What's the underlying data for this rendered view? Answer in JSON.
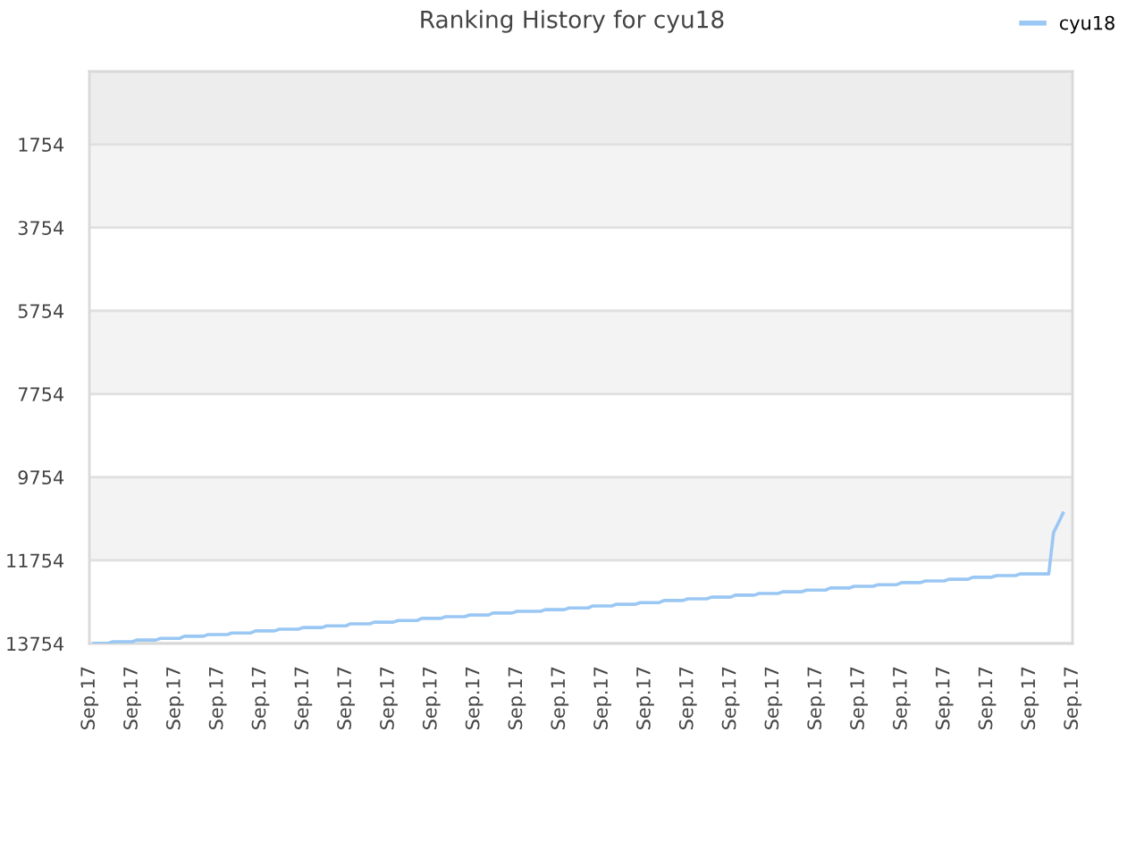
{
  "chart_data": {
    "type": "line",
    "title": "Ranking History for cyu18",
    "categories": [
      "Sep.17",
      null,
      null,
      null,
      null,
      null,
      null,
      null,
      null,
      "Sep.17",
      null,
      null,
      null,
      null,
      null,
      null,
      null,
      null,
      "Sep.17",
      null,
      null,
      null,
      null,
      null,
      null,
      null,
      null,
      "Sep.17",
      null,
      null,
      null,
      null,
      null,
      null,
      null,
      null,
      "Sep.17",
      null,
      null,
      null,
      null,
      null,
      null,
      null,
      null,
      "Sep.17",
      null,
      null,
      null,
      null,
      null,
      null,
      null,
      null,
      "Sep.17",
      null,
      null,
      null,
      null,
      null,
      null,
      null,
      null,
      "Sep.17",
      null,
      null,
      null,
      null,
      null,
      null,
      null,
      null,
      "Sep.17",
      null,
      null,
      null,
      null,
      null,
      null,
      null,
      null,
      "Sep.17",
      null,
      null,
      null,
      null,
      null,
      null,
      null,
      null,
      "Sep.17",
      null,
      null,
      null,
      null,
      null,
      null,
      null,
      null,
      "Sep.17",
      null,
      null,
      null,
      null,
      null,
      null,
      null,
      null,
      "Sep.17",
      null,
      null,
      null,
      null,
      null,
      null,
      null,
      null,
      "Sep.17",
      null,
      null,
      null,
      null,
      null,
      null,
      null,
      null,
      "Sep.17",
      null,
      null,
      null,
      null,
      null,
      null,
      null,
      null,
      "Sep.17",
      null,
      null,
      null,
      null,
      null,
      null,
      null,
      null,
      "Sep.17",
      null,
      null,
      null,
      null,
      null,
      null,
      null,
      null,
      "Sep.17",
      null,
      null,
      null,
      null,
      null,
      null,
      null,
      null,
      "Sep.17",
      null,
      null,
      null,
      null,
      null,
      null,
      null,
      null,
      "Sep.17",
      null,
      null,
      null,
      null,
      null,
      null,
      null,
      null,
      "Sep.17",
      null,
      null,
      null,
      null,
      null,
      null,
      null,
      null,
      "Sep.17",
      null,
      null,
      null,
      null,
      null,
      null,
      null,
      null,
      "Sep.17",
      null,
      null,
      null,
      null,
      null,
      null,
      null,
      null,
      "Sep.17"
    ],
    "series": [
      {
        "name": "cyu18",
        "color": "#9ac7f3",
        "values": [
          null,
          13750,
          13750,
          13750,
          13750,
          13710,
          13710,
          13710,
          13710,
          13710,
          13670,
          13670,
          13670,
          13670,
          13670,
          13630,
          13630,
          13630,
          13630,
          13630,
          13580,
          13580,
          13580,
          13580,
          13580,
          13540,
          13540,
          13540,
          13540,
          13540,
          13500,
          13500,
          13500,
          13500,
          13500,
          13450,
          13450,
          13450,
          13450,
          13450,
          13410,
          13410,
          13410,
          13410,
          13410,
          13370,
          13370,
          13370,
          13370,
          13370,
          13330,
          13330,
          13330,
          13330,
          13330,
          13280,
          13280,
          13280,
          13280,
          13280,
          13240,
          13240,
          13240,
          13240,
          13240,
          13200,
          13200,
          13200,
          13200,
          13200,
          13150,
          13150,
          13150,
          13150,
          13150,
          13110,
          13110,
          13110,
          13110,
          13110,
          13070,
          13070,
          13070,
          13070,
          13070,
          13020,
          13020,
          13020,
          13020,
          13020,
          12980,
          12980,
          12980,
          12980,
          12980,
          12980,
          12940,
          12940,
          12940,
          12940,
          12940,
          12900,
          12900,
          12900,
          12900,
          12900,
          12850,
          12850,
          12850,
          12850,
          12850,
          12810,
          12810,
          12810,
          12810,
          12810,
          12770,
          12770,
          12770,
          12770,
          12770,
          12720,
          12720,
          12720,
          12720,
          12720,
          12680,
          12680,
          12680,
          12680,
          12680,
          12640,
          12640,
          12640,
          12640,
          12640,
          12590,
          12590,
          12590,
          12590,
          12590,
          12550,
          12550,
          12550,
          12550,
          12550,
          12510,
          12510,
          12510,
          12510,
          12510,
          12470,
          12470,
          12470,
          12470,
          12470,
          12420,
          12420,
          12420,
          12420,
          12420,
          12380,
          12380,
          12380,
          12380,
          12380,
          12340,
          12340,
          12340,
          12340,
          12340,
          12290,
          12290,
          12290,
          12290,
          12290,
          12250,
          12250,
          12250,
          12250,
          12250,
          12210,
          12210,
          12210,
          12210,
          12210,
          12160,
          12160,
          12160,
          12160,
          12160,
          12120,
          12120,
          12120,
          12120,
          12120,
          12080,
          12080,
          12080,
          12080,
          12080,
          12080,
          12080,
          11090,
          10860,
          10620,
          null,
          null
        ]
      }
    ],
    "ylim": [
      13754,
      0
    ],
    "yticks": [
      1754,
      3754,
      5754,
      7754,
      9754,
      11754,
      13754
    ],
    "bands": [
      {
        "axis": "y",
        "from": 0,
        "to": 1754,
        "color": "#ededed"
      },
      {
        "axis": "y",
        "from": 1754,
        "to": 3754,
        "color": "#f3f3f3"
      },
      {
        "axis": "y",
        "from": 5754,
        "to": 7754,
        "color": "#f3f3f3"
      },
      {
        "axis": "y",
        "from": 9754,
        "to": 11754,
        "color": "#f3f3f3"
      }
    ],
    "grid": "y",
    "legend": "top right"
  }
}
